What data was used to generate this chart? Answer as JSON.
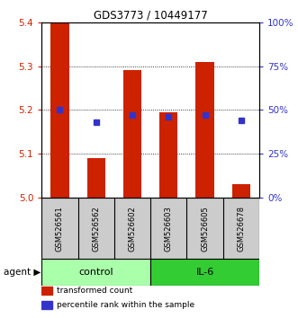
{
  "title": "GDS3773 / 10449177",
  "samples": [
    "GSM526561",
    "GSM526562",
    "GSM526602",
    "GSM526603",
    "GSM526605",
    "GSM526678"
  ],
  "groups": [
    "control",
    "control",
    "control",
    "IL-6",
    "IL-6",
    "IL-6"
  ],
  "red_values": [
    5.4,
    5.09,
    5.29,
    5.195,
    5.31,
    5.03
  ],
  "blue_values_pct": [
    50,
    43,
    47,
    46,
    47,
    44
  ],
  "ylim": [
    5.0,
    5.4
  ],
  "y2lim": [
    0,
    100
  ],
  "yticks": [
    5.0,
    5.1,
    5.2,
    5.3,
    5.4
  ],
  "y2ticks": [
    0,
    25,
    50,
    75,
    100
  ],
  "y2ticklabels": [
    "0%",
    "25%",
    "50%",
    "75%",
    "100%"
  ],
  "bar_color": "#CC2200",
  "blue_color": "#3333CC",
  "bar_width": 0.5,
  "control_color": "#AAFFAA",
  "il6_color": "#33CC33",
  "legend_red_label": "transformed count",
  "legend_blue_label": "percentile rank within the sample",
  "sample_box_color": "#CCCCCC",
  "grid_yticks": [
    5.1,
    5.2,
    5.3
  ]
}
